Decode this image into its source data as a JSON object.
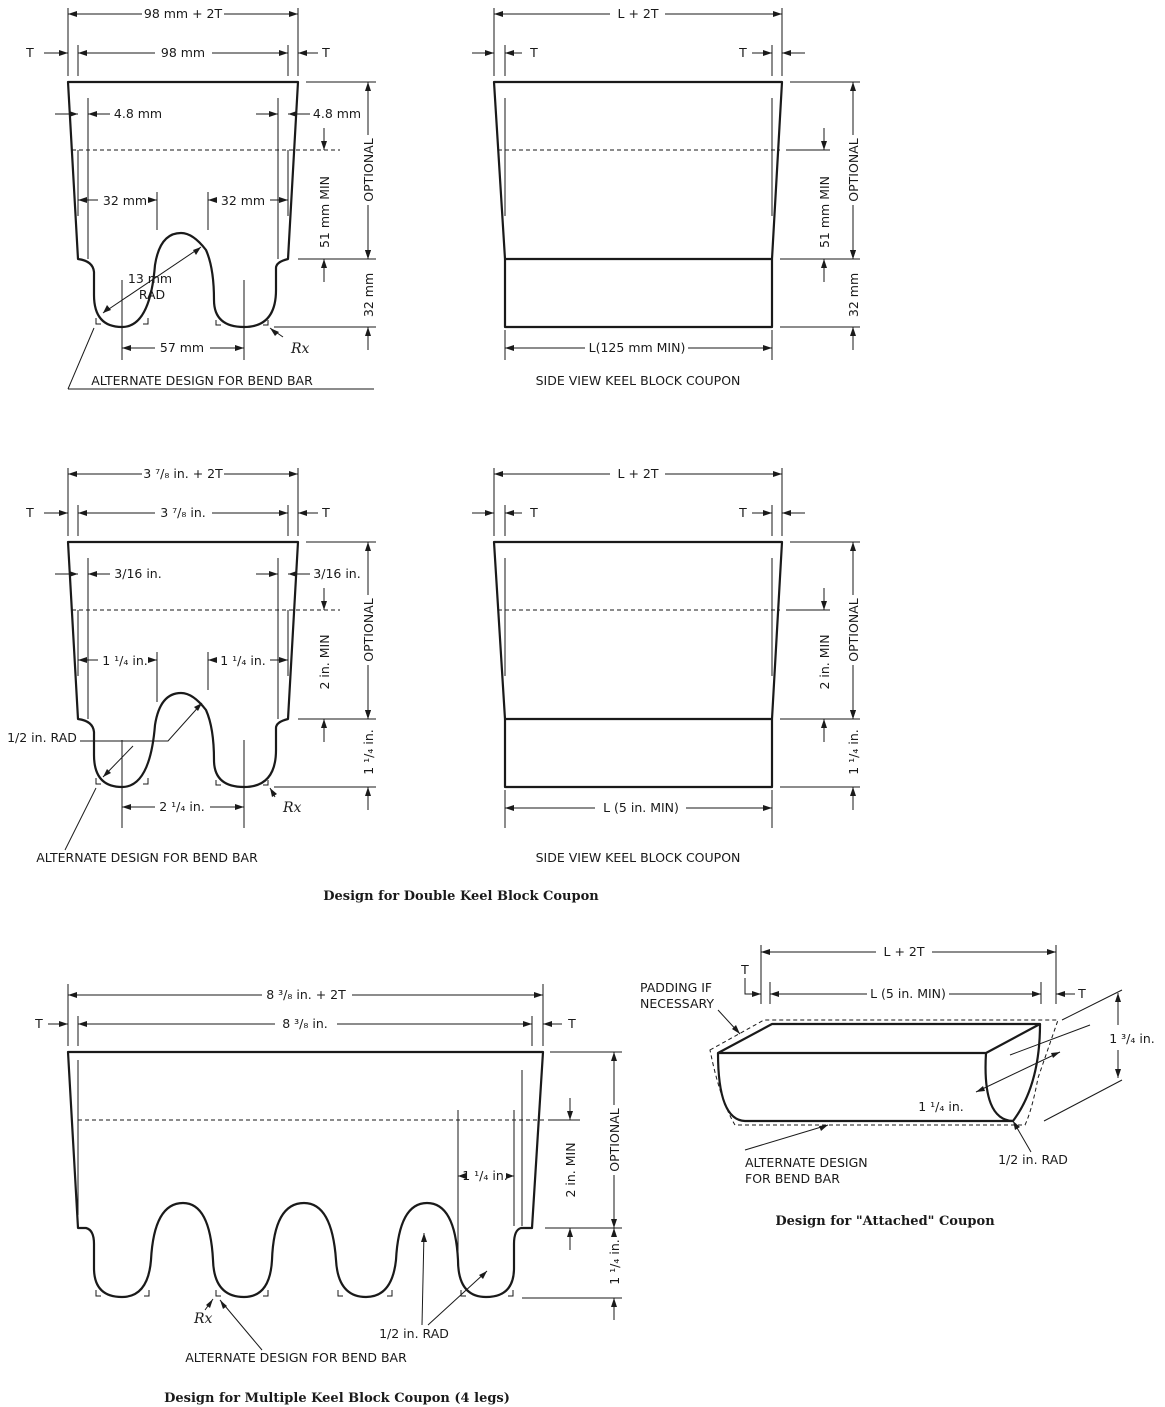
{
  "labels": {
    "t": "T",
    "l_2t": "L + 2T",
    "optional": "OPTIONAL",
    "alt_bend": "ALTERNATE DESIGN FOR BEND BAR",
    "side_view": "SIDE VIEW KEEL BLOCK COUPON",
    "rx": "Rx",
    "m_98_2t": "98 mm + 2T",
    "m_98": "98 mm",
    "m_4_8": "4.8 mm",
    "m_32": "32 mm",
    "m_13_rad_1": "13 mm",
    "m_13_rad_2": "RAD",
    "m_57": "57 mm",
    "m_51_min": "51 mm MIN",
    "m_l_min": "L(125 mm MIN)",
    "i_3_7_8_2t": "3 ⁷/₈ in. + 2T",
    "i_3_7_8": "3 ⁷/₈ in.",
    "i_3_16": "3/16 in.",
    "i_1_1_4": "1 ¹/₄ in.",
    "i_half_rad": "1/2 in. RAD",
    "i_2_1_4": "2 ¹/₄ in.",
    "i_2_min": "2 in. MIN",
    "i_l_min": "L (5 in. MIN)",
    "i_8_3_8_2t": "8 ³/₈ in. + 2T",
    "i_8_3_8": "8 ³/₈ in.",
    "i_1_3_4": "1 ³/₄ in.",
    "padding_1": "PADDING IF",
    "padding_2": "NECESSARY",
    "alt_bend_1": "ALTERNATE DESIGN",
    "alt_bend_2": "FOR BEND BAR"
  },
  "captions": {
    "double_keel": "Design for Double Keel Block Coupon",
    "multiple_keel": "Design for Multiple Keel Block Coupon  (4 legs)",
    "attached": "Design for \"Attached\" Coupon"
  }
}
